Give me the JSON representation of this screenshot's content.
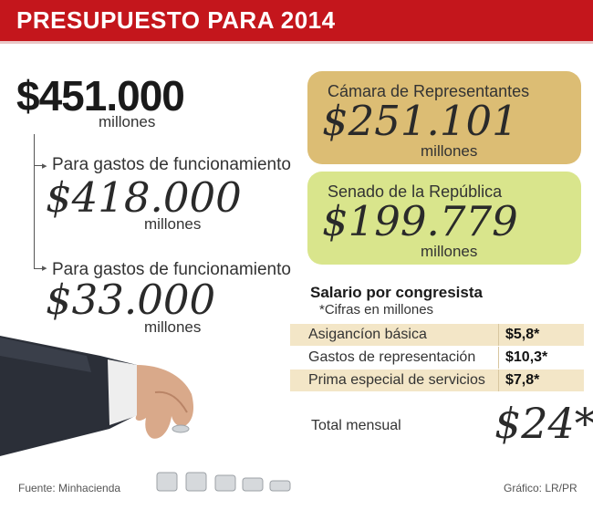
{
  "header": {
    "title": "PRESUPUESTO PARA 2014"
  },
  "total": {
    "amount": "$451.000",
    "unit": "millones"
  },
  "items": [
    {
      "label": "Para gastos de funcionamiento",
      "amount": "$418.000",
      "unit": "millones"
    },
    {
      "label": "Para gastos de funcionamiento",
      "amount": "$33.000",
      "unit": "millones"
    }
  ],
  "camara": {
    "label": "Cámara de Representantes",
    "amount": "$251.101",
    "unit": "millones",
    "color": "#dcbd74"
  },
  "senado": {
    "label": "Senado de la República",
    "amount": "$199.779",
    "unit": "millones",
    "color": "#d9e58c"
  },
  "salary": {
    "title": "Salario por congresista",
    "note": "*Cifras en millones",
    "rows": [
      {
        "label": "Asigancíon básica",
        "value": "$5,8*"
      },
      {
        "label": "Gastos de representación",
        "value": "$10,3*"
      },
      {
        "label": "Prima especial de servicios",
        "value": "$7,8*"
      }
    ],
    "total_label": "Total mensual",
    "total_value": "$24*"
  },
  "footer": {
    "source": "Fuente: Minhacienda",
    "credit": "Gráfico: LR/PR"
  },
  "colors": {
    "brand_red": "#c4161c",
    "row_highlight": "#f3e6c7"
  },
  "illustration": {
    "icon": "hand-with-coins-icon"
  }
}
